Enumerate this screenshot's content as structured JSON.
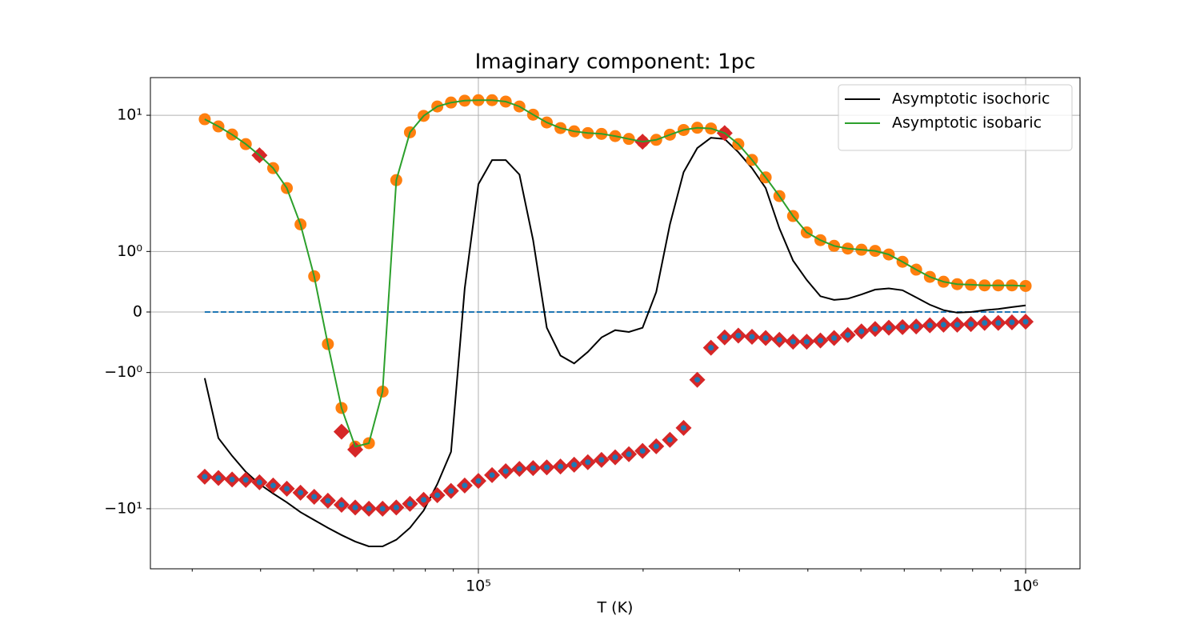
{
  "chart_data": {
    "type": "line",
    "title": "Imaginary component: 1pc",
    "xlabel": "T (K)",
    "xscale": "log",
    "yscale": "symlog",
    "linthresh": 1,
    "linscale": 0.4,
    "xlim": [
      25160,
      1257000
    ],
    "ylim": [
      -27.6,
      18.9
    ],
    "xticks": [
      {
        "value": 100000,
        "label": "10⁵"
      },
      {
        "value": 1000000,
        "label": "10⁶"
      }
    ],
    "xminorticks": [
      30000,
      40000,
      50000,
      60000,
      70000,
      80000,
      90000,
      200000,
      300000,
      400000,
      500000,
      600000,
      700000,
      800000,
      900000
    ],
    "yticks": [
      {
        "value": -10,
        "label": "−10¹"
      },
      {
        "value": -1,
        "label": "−10⁰"
      },
      0,
      {
        "value": 1,
        "label": "10⁰"
      },
      {
        "value": 10,
        "label": "10¹"
      }
    ],
    "grid": true,
    "legend": "upper right",
    "x": [
      31623,
      33497,
      35481,
      37584,
      39811,
      42170,
      44668,
      47315,
      50119,
      53088,
      56234,
      59566,
      63096,
      66834,
      70795,
      74989,
      79433,
      84140,
      89125,
      94406,
      100000,
      105925,
      112202,
      118850,
      125893,
      133352,
      141254,
      149624,
      158489,
      167880,
      177828,
      188365,
      199526,
      211349,
      223872,
      237137,
      251189,
      266073,
      281838,
      298538,
      316228,
      334965,
      354813,
      375837,
      398107,
      421697,
      446684,
      473151,
      501187,
      530884,
      562341,
      595662,
      630957,
      668344,
      707946,
      749894,
      794328,
      841395,
      891251,
      944061,
      1000000
    ],
    "series": [
      {
        "color": "#1f77b4",
        "linestyle": "dashed",
        "x": [
          31623,
          1000000
        ],
        "values": [
          0,
          0
        ]
      },
      {
        "name": "Asymptotic isochoric",
        "color": "#000000",
        "linestyle": "solid",
        "values": [
          -1.1,
          -3.03,
          -4.09,
          -5.36,
          -6.58,
          -7.73,
          -8.97,
          -10.6,
          -12.1,
          -13.8,
          -15.6,
          -17.4,
          -18.9,
          -18.9,
          -16.9,
          -13.8,
          -10.3,
          -6.58,
          -3.82,
          0.39,
          3.12,
          4.69,
          4.69,
          3.67,
          1.21,
          -0.26,
          -0.72,
          -0.85,
          -0.66,
          -0.42,
          -0.3,
          -0.33,
          -0.26,
          0.33,
          1.58,
          3.82,
          5.74,
          6.84,
          6.7,
          5.36,
          4.09,
          2.92,
          1.48,
          0.85,
          0.53,
          0.26,
          0.2,
          0.22,
          0.29,
          0.37,
          0.39,
          0.36,
          0.24,
          0.12,
          0.03,
          -0.01,
          0,
          0.03,
          0.05,
          0.08,
          0.11
        ]
      },
      {
        "color": "#ff7f0e",
        "marker": "circle",
        "values": [
          9.35,
          8.28,
          7.22,
          6.14,
          5.08,
          4.09,
          2.92,
          1.58,
          0.59,
          -0.53,
          -1.82,
          -3.5,
          -3.3,
          -1.38,
          3.34,
          7.5,
          9.9,
          11.6,
          12.4,
          12.8,
          12.9,
          12.9,
          12.6,
          11.6,
          10.1,
          8.85,
          8.05,
          7.62,
          7.4,
          7.3,
          7.03,
          6.7,
          6.4,
          6.6,
          7.2,
          7.8,
          8.1,
          8.0,
          7.4,
          6.14,
          4.7,
          3.5,
          2.55,
          1.82,
          1.38,
          1.21,
          1.1,
          1.05,
          1.03,
          1.01,
          0.95,
          0.83,
          0.7,
          0.58,
          0.5,
          0.46,
          0.45,
          0.44,
          0.44,
          0.44,
          0.43
        ]
      },
      {
        "color": "#d62728",
        "marker": "diamond",
        "values": [
          -5.82,
          -5.95,
          -6.1,
          -6.14,
          -6.4,
          -6.75,
          -7.13,
          -7.62,
          -8.17,
          -8.73,
          -9.35,
          -9.8,
          -10,
          -10,
          -9.8,
          -9.2,
          -8.6,
          -7.95,
          -7.4,
          -6.75,
          -6.25,
          -5.66,
          -5.3,
          -5.1,
          -5.03,
          -4.97,
          -4.9,
          -4.75,
          -4.55,
          -4.38,
          -4.19,
          -3.98,
          -3.76,
          -3.48,
          -3.12,
          -2.55,
          -1.13,
          -0.59,
          -0.42,
          -0.39,
          -0.41,
          -0.43,
          -0.46,
          -0.49,
          -0.49,
          -0.47,
          -0.43,
          -0.38,
          -0.32,
          -0.28,
          -0.26,
          -0.25,
          -0.24,
          -0.22,
          -0.21,
          -0.21,
          -0.2,
          -0.18,
          -0.18,
          -0.17,
          -0.16
        ]
      },
      {
        "color": "#d62728",
        "marker": "diamond",
        "values": [
          null,
          null,
          null,
          null,
          5.08,
          null,
          null,
          null,
          null,
          null,
          -2.72,
          -3.68,
          null,
          null,
          null,
          null,
          null,
          null,
          null,
          null,
          null,
          null,
          null,
          null,
          null,
          null,
          null,
          null,
          null,
          null,
          null,
          null,
          6.4,
          null,
          null,
          null,
          null,
          null,
          7.4,
          null,
          null,
          null,
          null,
          null,
          null,
          null,
          null,
          null,
          null,
          null,
          null,
          null,
          null,
          null,
          null,
          null,
          null,
          null,
          null,
          null,
          null
        ]
      },
      {
        "color": "#1f77b4",
        "marker": "dot",
        "values": [
          -5.82,
          -5.95,
          -6.1,
          -6.14,
          -6.4,
          -6.75,
          -7.13,
          -7.62,
          -8.17,
          -8.73,
          -9.35,
          -9.8,
          -10,
          -10,
          -9.8,
          -9.2,
          -8.6,
          -7.95,
          -7.4,
          -6.75,
          -6.25,
          -5.66,
          -5.3,
          -5.1,
          -5.03,
          -4.97,
          -4.9,
          -4.75,
          -4.55,
          -4.38,
          -4.19,
          -3.98,
          -3.76,
          -3.48,
          -3.12,
          -2.55,
          -1.13,
          -0.59,
          -0.42,
          -0.39,
          -0.41,
          -0.43,
          -0.46,
          -0.49,
          -0.49,
          -0.47,
          -0.43,
          -0.38,
          -0.32,
          -0.28,
          -0.26,
          -0.25,
          -0.24,
          -0.22,
          -0.21,
          -0.21,
          -0.2,
          -0.18,
          -0.18,
          -0.17,
          -0.16
        ]
      },
      {
        "name": "Asymptotic isobaric",
        "color": "#2ca02c",
        "linestyle": "solid",
        "values": [
          9.35,
          8.28,
          7.22,
          6.14,
          5.08,
          4.09,
          2.92,
          1.58,
          0.59,
          -0.53,
          -1.82,
          -3.5,
          -3.3,
          -1.38,
          3.34,
          7.5,
          9.9,
          11.6,
          12.4,
          12.8,
          12.9,
          12.9,
          12.6,
          11.6,
          10.1,
          8.85,
          8.05,
          7.62,
          7.4,
          7.3,
          7.03,
          6.7,
          6.4,
          6.6,
          7.2,
          7.8,
          8.1,
          8.0,
          7.4,
          6.14,
          4.7,
          3.5,
          2.55,
          1.82,
          1.38,
          1.21,
          1.1,
          1.05,
          1.03,
          1.01,
          0.95,
          0.83,
          0.7,
          0.58,
          0.5,
          0.46,
          0.45,
          0.44,
          0.44,
          0.44,
          0.43
        ]
      }
    ]
  }
}
